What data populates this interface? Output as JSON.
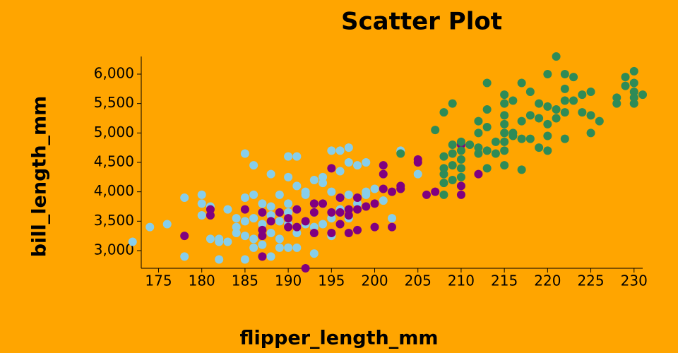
{
  "chart_data": {
    "type": "scatter",
    "title": "Scatter Plot",
    "x_label": "flipper_length_mm",
    "y_label": "bill_length_mm",
    "xlim": [
      173,
      231
    ],
    "ylim": [
      2700,
      6300
    ],
    "xticks": [
      175,
      180,
      185,
      190,
      195,
      200,
      205,
      210,
      215,
      220,
      225,
      230
    ],
    "yticks": [
      {
        "value": 3000,
        "label": "3,000"
      },
      {
        "value": 3500,
        "label": "3,500"
      },
      {
        "value": 4000,
        "label": "4,000"
      },
      {
        "value": 4500,
        "label": "4,500"
      },
      {
        "value": 5000,
        "label": "5,000"
      },
      {
        "value": 5500,
        "label": "5,500"
      },
      {
        "value": 6000,
        "label": "6,000"
      }
    ],
    "series": [
      {
        "color": "#87ceeb",
        "x": [
          172,
          174,
          176,
          178,
          178,
          180,
          180,
          180,
          181,
          181,
          182,
          182,
          182,
          183,
          184,
          184,
          185,
          185,
          185,
          185,
          185,
          186,
          186,
          186,
          186,
          187,
          187,
          187,
          188,
          188,
          188,
          188,
          189,
          189,
          189,
          190,
          190,
          190,
          190,
          190,
          191,
          191,
          191,
          191,
          191,
          192,
          192,
          193,
          193,
          193,
          194,
          194,
          194,
          195,
          195,
          195,
          195,
          196,
          196,
          196,
          197,
          197,
          197,
          197,
          198,
          198,
          199,
          199,
          200,
          202,
          203,
          205,
          184,
          189,
          193,
          186,
          183,
          187,
          192,
          194,
          196,
          190,
          188,
          199,
          201
        ],
        "values": [
          3150,
          3400,
          3450,
          3900,
          2900,
          3950,
          3800,
          3600,
          3200,
          3750,
          3200,
          3150,
          2850,
          3700,
          3550,
          3400,
          4650,
          3900,
          3500,
          3250,
          2850,
          4450,
          3950,
          3550,
          3050,
          3800,
          3450,
          3100,
          4300,
          3600,
          3300,
          2900,
          3950,
          3500,
          3200,
          4600,
          4250,
          3800,
          3450,
          3050,
          4600,
          4100,
          3700,
          3300,
          3050,
          3950,
          3450,
          4200,
          3650,
          2950,
          4150,
          3800,
          3450,
          4700,
          4000,
          3550,
          3250,
          4700,
          4350,
          3700,
          4750,
          4500,
          3950,
          3550,
          4450,
          3800,
          4500,
          3950,
          4050,
          3550,
          4700,
          4300,
          3300,
          3050,
          3400,
          3200,
          3150,
          3650,
          4000,
          4250,
          3900,
          3650,
          3750,
          4000,
          3850
        ]
      },
      {
        "color": "#800080",
        "x": [
          178,
          181,
          181,
          185,
          187,
          187,
          187,
          187,
          188,
          189,
          190,
          190,
          191,
          191,
          192,
          192,
          193,
          193,
          193,
          194,
          195,
          195,
          195,
          196,
          196,
          196,
          197,
          197,
          197,
          198,
          198,
          198,
          199,
          200,
          200,
          201,
          201,
          201,
          202,
          202,
          203,
          203,
          205,
          205,
          206,
          207,
          210,
          210,
          210,
          212
        ],
        "values": [
          3250,
          3700,
          3600,
          3700,
          3650,
          3350,
          2900,
          3250,
          3500,
          3650,
          3550,
          3400,
          3700,
          3400,
          2700,
          3500,
          3800,
          3650,
          3300,
          3800,
          4400,
          3650,
          3300,
          3900,
          3650,
          3450,
          3700,
          3600,
          3300,
          3700,
          3900,
          3350,
          3750,
          3800,
          3400,
          4450,
          4300,
          4050,
          4000,
          3400,
          4100,
          4050,
          4550,
          4500,
          3950,
          4000,
          4800,
          4100,
          3950,
          4300
        ]
      },
      {
        "color": "#2e8b57",
        "x": [
          203,
          207,
          208,
          208,
          208,
          208,
          208,
          208,
          209,
          209,
          209,
          209,
          209,
          210,
          210,
          210,
          210,
          210,
          211,
          212,
          212,
          212,
          212,
          213,
          213,
          213,
          213,
          213,
          214,
          214,
          215,
          215,
          215,
          215,
          215,
          215,
          215,
          215,
          216,
          216,
          216,
          217,
          217,
          217,
          217,
          218,
          218,
          218,
          219,
          219,
          219,
          220,
          220,
          220,
          220,
          220,
          221,
          221,
          221,
          222,
          222,
          222,
          222,
          222,
          223,
          223,
          224,
          224,
          225,
          225,
          225,
          226,
          228,
          228,
          229,
          229,
          230,
          230,
          230,
          230,
          230,
          231
        ],
        "values": [
          4650,
          5050,
          5350,
          4600,
          4400,
          4300,
          4150,
          3950,
          5500,
          4800,
          4650,
          4450,
          4200,
          4850,
          4700,
          4550,
          4400,
          4250,
          4800,
          4750,
          5000,
          5200,
          4650,
          5850,
          5400,
          5100,
          4700,
          4400,
          4850,
          4650,
          5650,
          5500,
          5300,
          5150,
          5000,
          4850,
          4700,
          4450,
          5550,
          5000,
          4950,
          5850,
          5200,
          4900,
          4375,
          5700,
          5300,
          4900,
          5500,
          5250,
          4750,
          6000,
          5450,
          5150,
          4950,
          4700,
          6300,
          5400,
          5250,
          6000,
          5750,
          5550,
          5350,
          4900,
          5950,
          5550,
          5650,
          5350,
          5700,
          5300,
          5000,
          5200,
          5600,
          5500,
          5950,
          5800,
          6050,
          5850,
          5700,
          5600,
          5500,
          5650
        ]
      }
    ]
  }
}
